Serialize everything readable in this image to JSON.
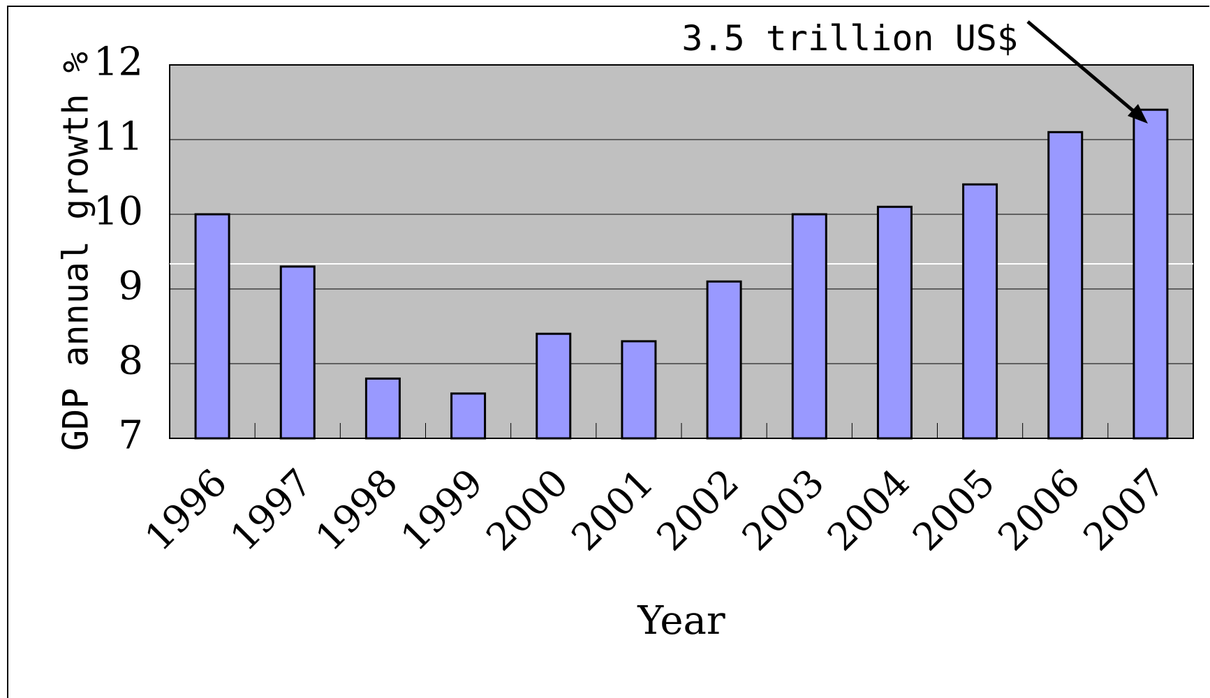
{
  "chart_data": {
    "type": "bar",
    "categories": [
      "1996",
      "1997",
      "1998",
      "1999",
      "2000",
      "2001",
      "2002",
      "2003",
      "2004",
      "2005",
      "2006",
      "2007"
    ],
    "values": [
      10.0,
      9.3,
      7.8,
      7.6,
      8.4,
      8.3,
      9.1,
      10.0,
      10.1,
      10.4,
      11.1,
      11.4
    ],
    "xlabel": "Year",
    "ylabel": "GDP annual growth %",
    "ylim": [
      7,
      12
    ],
    "yticks": [
      "7",
      "8",
      "9",
      "10",
      "11",
      "12"
    ],
    "grid": true,
    "annotation": {
      "text": "3.5 trillion US$",
      "target_category": "2007"
    },
    "colors": {
      "bar_fill": "#9999ff",
      "bar_stroke": "#000000",
      "plot_bg": "#c0c0c0",
      "grid": "#000000"
    }
  }
}
